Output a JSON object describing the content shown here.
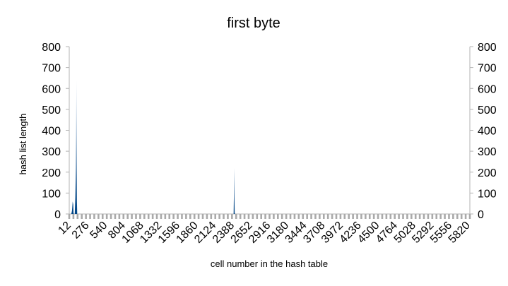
{
  "chart_data": {
    "type": "area",
    "title": "first byte",
    "xlabel": "cell number in the hash table",
    "ylabel": "hash list length",
    "ylim": [
      0,
      800
    ],
    "yticks": [
      0,
      100,
      200,
      300,
      400,
      500,
      600,
      700,
      800
    ],
    "xlim": [
      0,
      5830
    ],
    "xtick_labels": [
      "12",
      "276",
      "540",
      "804",
      "1068",
      "1332",
      "1596",
      "1860",
      "2124",
      "2388",
      "2652",
      "2916",
      "3180",
      "3444",
      "3708",
      "3972",
      "4236",
      "4500",
      "4764",
      "5028",
      "5292",
      "5556",
      "5820"
    ],
    "grid": false,
    "series": [
      {
        "name": "hash list length",
        "x": [
          0,
          30,
          40,
          50,
          58,
          62,
          66,
          80,
          88,
          96,
          100,
          104,
          108,
          112,
          116,
          124,
          2380,
          2392,
          2396,
          2400,
          2404,
          2408,
          2412,
          2420,
          5830
        ],
        "y": [
          0,
          0,
          15,
          60,
          45,
          5,
          0,
          0,
          80,
          220,
          380,
          640,
          420,
          60,
          0,
          0,
          0,
          0,
          80,
          220,
          80,
          5,
          0,
          0,
          0
        ]
      }
    ],
    "colors": {
      "fill_dark": "#004586",
      "fill_light": "#cfdcec",
      "axis": "#b3b3b3",
      "minor_tick": "#aaaaaa"
    }
  }
}
